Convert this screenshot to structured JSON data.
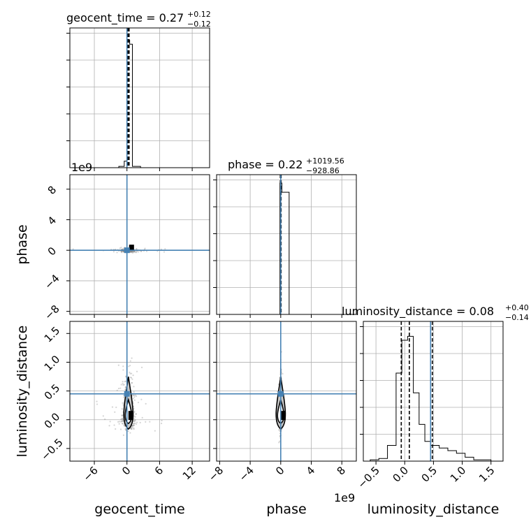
{
  "chart_data": {
    "type": "corner",
    "parameters": [
      "geocent_time",
      "phase",
      "luminosity_distance"
    ],
    "axis_labels": {
      "geocent_time": "geocent_time",
      "phase": "phase",
      "luminosity_distance": "luminosity_distance"
    },
    "ranges": {
      "geocent_time": [
        -10.5,
        15.2
      ],
      "phase": [
        -8.4,
        9.9
      ],
      "luminosity_distance": [
        -0.72,
        1.71
      ]
    },
    "offset_text": {
      "phase_x": "1e9",
      "phase_y": "1e9"
    },
    "ticks": {
      "geocent_time": [
        {
          "v": -6,
          "label": "−6"
        },
        {
          "v": 0,
          "label": "0"
        },
        {
          "v": 6,
          "label": "6"
        },
        {
          "v": 12,
          "label": "12"
        }
      ],
      "phase": [
        {
          "v": -8,
          "label": "−8"
        },
        {
          "v": -4,
          "label": "−4"
        },
        {
          "v": 0,
          "label": "0"
        },
        {
          "v": 4,
          "label": "4"
        },
        {
          "v": 8,
          "label": "8"
        }
      ],
      "luminosity_distance": [
        {
          "v": -0.5,
          "label": "−0.5"
        },
        {
          "v": 0.0,
          "label": "0.0"
        },
        {
          "v": 0.5,
          "label": "0.5"
        },
        {
          "v": 1.0,
          "label": "1.0"
        },
        {
          "v": 1.5,
          "label": "1.5"
        }
      ]
    },
    "titles": {
      "geocent_time": {
        "text": "geocent_time = 0.27",
        "plus": "+0.12",
        "minus": "−0.12"
      },
      "phase": {
        "text": "phase = 0.22",
        "plus": "+1019.56",
        "minus": "−928.86"
      },
      "luminosity_distance": {
        "text": "luminosity_distance = 0.08",
        "plus": "+0.40",
        "minus": "−0.14"
      }
    },
    "truths": {
      "geocent_time": 0.0,
      "phase": 0.0,
      "luminosity_distance": 0.45
    },
    "quantiles": {
      "geocent_time": [
        0.15,
        0.27,
        0.39
      ],
      "phase": [
        -0.05,
        0.0,
        0.05
      ],
      "luminosity_distance": [
        -0.06,
        0.08,
        0.48
      ]
    },
    "marginals": {
      "geocent_time": {
        "bins": [
          -1.5,
          -0.5,
          0.0,
          0.5,
          1.0,
          2.5
        ],
        "counts": [
          0.01,
          0.05,
          0.97,
          0.94,
          0.01
        ]
      },
      "phase": {
        "bins": [
          -0.1,
          0.15,
          1.1
        ],
        "counts": [
          1.0,
          0.93
        ]
      },
      "luminosity_distance": {
        "bins": [
          -0.6,
          -0.45,
          -0.3,
          -0.15,
          -0.05,
          0.05,
          0.15,
          0.25,
          0.35,
          0.45,
          0.6,
          0.75,
          0.9,
          1.05,
          1.2,
          1.35,
          1.5
        ],
        "counts": [
          0.01,
          0.02,
          0.12,
          0.67,
          0.92,
          0.95,
          0.52,
          0.28,
          0.15,
          0.12,
          0.1,
          0.08,
          0.06,
          0.03,
          0.01,
          0.01
        ]
      }
    },
    "grid": true,
    "truth_color": "#4682b4"
  }
}
